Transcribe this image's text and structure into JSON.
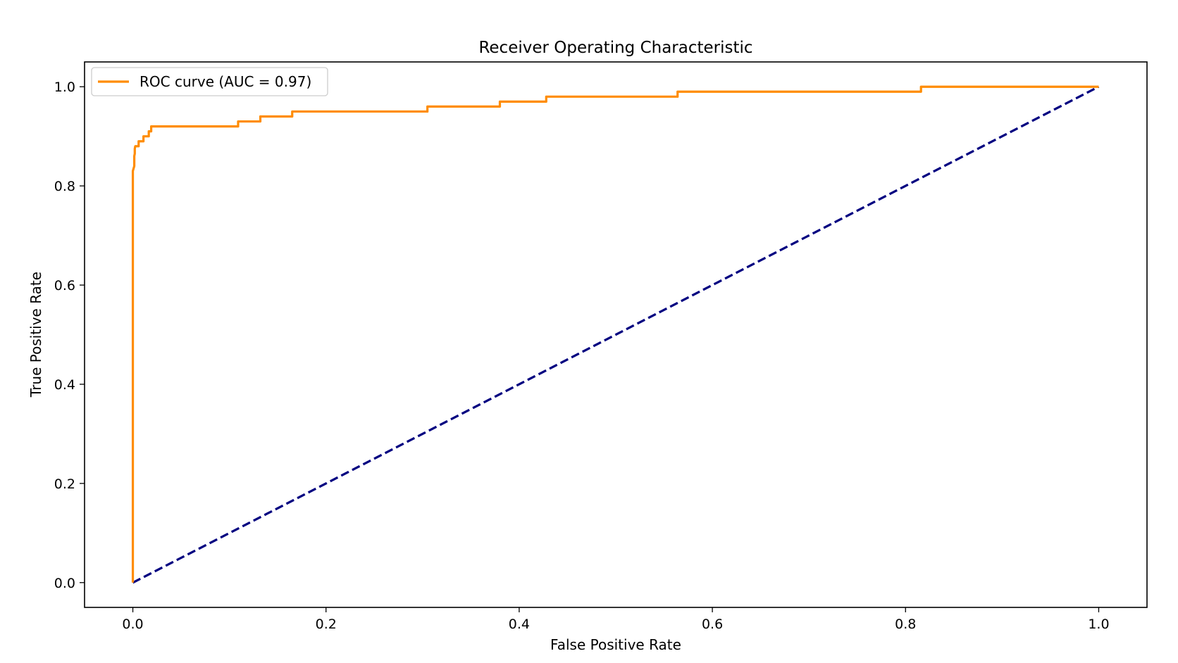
{
  "chart_data": {
    "type": "line",
    "title": "Receiver Operating Characteristic",
    "xlabel": "False Positive Rate",
    "ylabel": "True Positive Rate",
    "xlim": [
      -0.05,
      1.05
    ],
    "ylim": [
      -0.05,
      1.05
    ],
    "xticks": [
      0.0,
      0.2,
      0.4,
      0.6,
      0.8,
      1.0
    ],
    "yticks": [
      0.0,
      0.2,
      0.4,
      0.6,
      0.8,
      1.0
    ],
    "xtick_labels": [
      "0.0",
      "0.2",
      "0.4",
      "0.6",
      "0.8",
      "1.0"
    ],
    "ytick_labels": [
      "0.0",
      "0.2",
      "0.4",
      "0.6",
      "0.8",
      "1.0"
    ],
    "grid": false,
    "legend_position": "top-left",
    "series": [
      {
        "name": "ROC curve (AUC = 0.97)",
        "color": "#ff8c00",
        "style": "solid",
        "x": [
          0.0,
          0.0,
          0.0,
          0.0015,
          0.0015,
          0.002,
          0.002,
          0.0025,
          0.0025,
          0.006,
          0.006,
          0.011,
          0.011,
          0.0165,
          0.0165,
          0.019,
          0.019,
          0.109,
          0.109,
          0.132,
          0.132,
          0.165,
          0.165,
          0.305,
          0.305,
          0.38,
          0.38,
          0.428,
          0.428,
          0.564,
          0.564,
          0.816,
          0.816,
          1.0
        ],
        "y": [
          0.0,
          0.5,
          0.83,
          0.84,
          0.86,
          0.865,
          0.875,
          0.88,
          0.88,
          0.88,
          0.89,
          0.89,
          0.9,
          0.9,
          0.91,
          0.91,
          0.92,
          0.92,
          0.93,
          0.93,
          0.94,
          0.94,
          0.95,
          0.95,
          0.96,
          0.96,
          0.97,
          0.97,
          0.98,
          0.98,
          0.99,
          0.99,
          1.0,
          1.0
        ]
      },
      {
        "name": "",
        "color": "#000080",
        "style": "dashed",
        "x": [
          0.0,
          1.0
        ],
        "y": [
          0.0,
          1.0
        ]
      }
    ]
  }
}
